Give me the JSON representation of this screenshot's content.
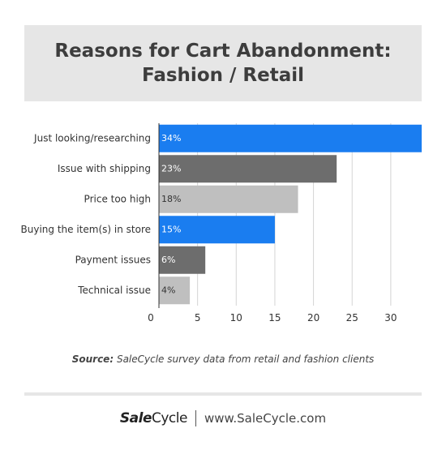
{
  "title": {
    "line1": "Reasons for Cart Abandonment:",
    "line2": "Fashion / Retail"
  },
  "chart_data": {
    "type": "bar",
    "orientation": "horizontal",
    "categories": [
      "Just looking/researching",
      "Issue with shipping",
      "Price too high",
      "Buying the item(s) in store",
      "Payment issues",
      "Technical issue"
    ],
    "values": [
      34,
      23,
      18,
      15,
      6,
      4
    ],
    "data_labels": [
      "34%",
      "23%",
      "18%",
      "15%",
      "6%",
      "4%"
    ],
    "bar_colors": [
      "#1a7df0",
      "#6d6d6d",
      "#bfbfbf",
      "#1a7df0",
      "#6d6d6d",
      "#bfbfbf"
    ],
    "xlim": [
      0,
      34
    ],
    "xticks": [
      0,
      5,
      10,
      15,
      20,
      25,
      30
    ],
    "grid": true,
    "xlabel": "",
    "ylabel": ""
  },
  "source": {
    "label": "Source:",
    "text": "SaleCycle survey data from retail and fashion clients"
  },
  "footer": {
    "brand_strong": "Sale",
    "brand_rest": "Cycle",
    "website": "www.SaleCycle.com"
  }
}
